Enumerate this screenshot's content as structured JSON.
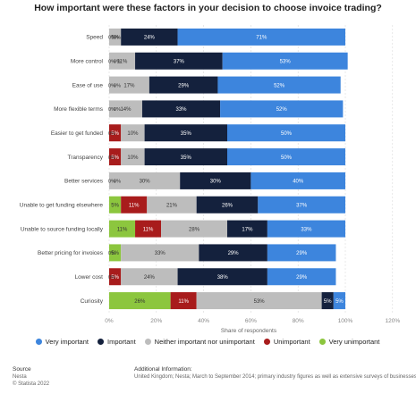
{
  "chart_data": {
    "type": "bar",
    "orientation": "horizontal",
    "stacked": true,
    "title": "How important were these factors in your decision to choose invoice trading?",
    "xlabel": "Share of respondents",
    "ylabel": "",
    "xlim": [
      0,
      120
    ],
    "x_ticks": [
      0,
      20,
      40,
      60,
      80,
      100,
      120
    ],
    "x_tick_labels": [
      "0%",
      "20%",
      "40%",
      "60%",
      "80%",
      "100%",
      "120%"
    ],
    "grid": "vertical dashed",
    "legend_position": "bottom",
    "categories": [
      "Speed",
      "More control",
      "Ease of use",
      "More flexible terms",
      "Easier to get funded",
      "Transparency",
      "Better services",
      "Unable to get funding elsewhere",
      "Unable to source funding locally",
      "Better pricing for invoices",
      "Lower cost",
      "Curiosity"
    ],
    "series": [
      {
        "name": "Very unimportant",
        "color": "#8cc63e",
        "values": [
          0,
          0,
          0,
          0,
          0,
          0,
          0,
          5,
          11,
          5,
          0,
          26
        ]
      },
      {
        "name": "Unimportant",
        "color": "#a81c1c",
        "values": [
          0,
          0,
          0,
          0,
          5,
          5,
          0,
          11,
          11,
          0,
          5,
          11
        ]
      },
      {
        "name": "Neither important nor unimportant",
        "color": "#bdbdbd",
        "values": [
          5,
          11,
          17,
          14,
          10,
          10,
          30,
          21,
          28,
          33,
          24,
          53
        ]
      },
      {
        "name": "Important",
        "color": "#14213d",
        "values": [
          24,
          37,
          29,
          33,
          35,
          35,
          30,
          26,
          17,
          29,
          38,
          5
        ]
      },
      {
        "name": "Very important",
        "color": "#3d85dd",
        "values": [
          71,
          53,
          52,
          52,
          50,
          50,
          40,
          37,
          33,
          29,
          29,
          5
        ]
      }
    ],
    "data_labels": [
      [
        "",
        "",
        "5%",
        "24%",
        "71%"
      ],
      [
        "",
        "",
        "11%",
        "37%",
        "53%"
      ],
      [
        "",
        "",
        "17%",
        "29%",
        "52%"
      ],
      [
        "",
        "",
        "14%",
        "33%",
        "52%"
      ],
      [
        "",
        "5%",
        "10%",
        "35%",
        "50%"
      ],
      [
        "",
        "5%",
        "10%",
        "35%",
        "50%"
      ],
      [
        "",
        "",
        "30%",
        "30%",
        "40%"
      ],
      [
        "5%",
        "11%",
        "21%",
        "26%",
        "37%"
      ],
      [
        "11%",
        "11%",
        "28%",
        "17%",
        "33%"
      ],
      [
        "5%",
        "",
        "33%",
        "29%",
        "29%"
      ],
      [
        "",
        "5%",
        "24%",
        "38%",
        "29%"
      ],
      [
        "26%",
        "11%",
        "53%",
        "5%",
        "5%"
      ]
    ],
    "zero_labels": [
      [
        "0%",
        "0%"
      ],
      [
        "0%",
        "0%"
      ],
      [
        "0%",
        "0%"
      ],
      [
        "0%",
        "0%"
      ],
      [
        "0%"
      ],
      [
        "0%"
      ],
      [
        "0%",
        "0%"
      ],
      [],
      [],
      [
        "0%"
      ],
      [
        "0%"
      ],
      []
    ]
  },
  "legend": {
    "items": [
      {
        "label": "Very important",
        "color": "#3d85dd"
      },
      {
        "label": "Important",
        "color": "#14213d"
      },
      {
        "label": "Neither important nor unimportant",
        "color": "#bdbdbd"
      },
      {
        "label": "Unimportant",
        "color": "#a81c1c"
      },
      {
        "label": "Very unimportant",
        "color": "#8cc63e"
      }
    ]
  },
  "footer": {
    "source_heading": "Source",
    "source_lines": [
      "Nesta",
      "© Statista 2022"
    ],
    "info_heading": "Additional Information:",
    "info_text": "United Kingdom; Nesta; March to September 2014; primary industry figures as well as extensive surveys of businesses and"
  }
}
